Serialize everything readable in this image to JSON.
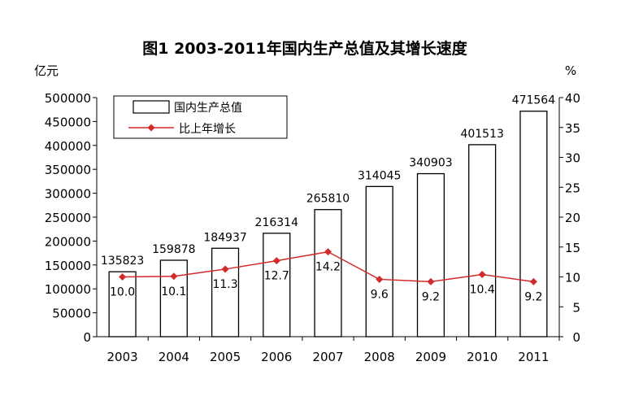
{
  "chart_data": {
    "type": "bar",
    "title": "图1   2003-2011年国内生产总值及其增长速度",
    "categories": [
      "2003",
      "2004",
      "2005",
      "2006",
      "2007",
      "2008",
      "2009",
      "2010",
      "2011"
    ],
    "y_left_unit": "亿元",
    "y_right_unit": "%",
    "ylim_left": [
      0,
      500000
    ],
    "ylim_right": [
      0,
      40
    ],
    "yticks_left": [
      "0",
      "50000",
      "100000",
      "150000",
      "200000",
      "250000",
      "300000",
      "350000",
      "400000",
      "450000",
      "500000"
    ],
    "yticks_right": [
      "0",
      "5",
      "10",
      "15",
      "20",
      "25",
      "30",
      "35",
      "40"
    ],
    "legend_position": "top-left",
    "series": [
      {
        "name": "国内生产总值",
        "type": "bar",
        "axis": "left",
        "values": [
          135823,
          159878,
          184937,
          216314,
          265810,
          314045,
          340903,
          401513,
          471564
        ],
        "labels": [
          "135823",
          "159878",
          "184937",
          "216314",
          "265810",
          "314045",
          "340903",
          "401513",
          "471564"
        ],
        "color": "#ffffff",
        "stroke": "#000000"
      },
      {
        "name": "比上年增长",
        "type": "line",
        "axis": "right",
        "values": [
          10.0,
          10.1,
          11.3,
          12.7,
          14.2,
          9.6,
          9.2,
          10.4,
          9.2
        ],
        "labels": [
          "10.0",
          "10.1",
          "11.3",
          "12.7",
          "14.2",
          "9.6",
          "9.2",
          "10.4",
          "9.2"
        ],
        "color": "#d42a2a"
      }
    ]
  }
}
